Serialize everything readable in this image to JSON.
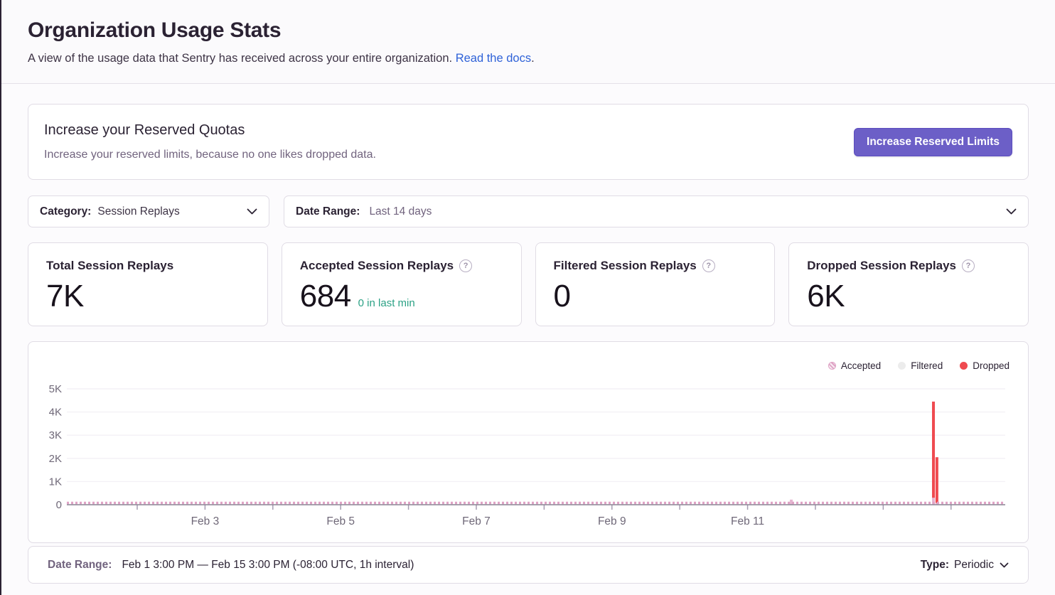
{
  "page": {
    "title": "Organization Usage Stats",
    "subtitle": "A view of the usage data that Sentry has received across your entire organization.",
    "docs_link": "Read the docs",
    "docs_link_suffix": "."
  },
  "quota_banner": {
    "title": "Increase your Reserved Quotas",
    "description": "Increase your reserved limits, because no one likes dropped data.",
    "button_label": "Increase Reserved Limits"
  },
  "filters": {
    "category": {
      "label": "Category:",
      "value": "Session Replays"
    },
    "date_range": {
      "label": "Date Range:",
      "value": "Last 14 days"
    }
  },
  "stat_cards": [
    {
      "title": "Total Session Replays",
      "value": "7K",
      "trend": ""
    },
    {
      "title": "Accepted Session Replays",
      "value": "684",
      "trend": "0 in last min"
    },
    {
      "title": "Filtered Session Replays",
      "value": "0",
      "trend": ""
    },
    {
      "title": "Dropped Session Replays",
      "value": "6K",
      "trend": ""
    }
  ],
  "chart_data": {
    "type": "bar",
    "title": "",
    "xlabel": "",
    "ylabel": "",
    "x_axis": {
      "range_start": "Feb 1 3:00 PM",
      "range_end": "Feb 15 3:00 PM",
      "interval": "1h",
      "tick_labels": [
        "Feb 3",
        "Feb 5",
        "Feb 7",
        "Feb 9",
        "Feb 11"
      ],
      "grid": false
    },
    "y_axis": {
      "min": 0,
      "max": 5000,
      "tick_values": [
        0,
        1000,
        2000,
        3000,
        4000,
        5000
      ],
      "tick_labels": [
        "0",
        "1K",
        "2K",
        "3K",
        "4K",
        "5K"
      ],
      "grid": true
    },
    "legend": [
      {
        "label": "Accepted",
        "color": "#dfa3c5",
        "pattern": "hatched"
      },
      {
        "label": "Filtered",
        "color": "#ececec",
        "pattern": "solid"
      },
      {
        "label": "Dropped",
        "color": "#ef4a50",
        "pattern": "solid"
      }
    ],
    "legend_position": "top-right",
    "series_summary": [
      {
        "name": "Accepted",
        "total": 684,
        "shape": "tiny hourly bars (~2/hour) along the entire baseline"
      },
      {
        "name": "Filtered",
        "total": 0,
        "shape": "no visible bars"
      },
      {
        "name": "Dropped",
        "total": 6000,
        "shape": "two adjacent spikes near Feb 14"
      }
    ],
    "bars": [
      {
        "x_fraction": 0.772,
        "series": "Accepted",
        "accepted_base": 220,
        "dropped": 0,
        "note": "small accepted blip ~Feb 12"
      },
      {
        "x_fraction": 0.9235,
        "series": "Dropped",
        "accepted_base": 300,
        "dropped": 4150,
        "note": "tall dropped spike ~Feb 14, total ~4.4K"
      },
      {
        "x_fraction": 0.9272,
        "series": "Dropped",
        "accepted_base": 80,
        "dropped": 1970,
        "note": "second dropped spike ~Feb 14, total ~2K"
      }
    ],
    "baseline_strip": {
      "series": "Accepted",
      "approx_value_per_hour": 2
    },
    "tick_geometry": {
      "first_fraction": 0.075,
      "step_fraction": 0.07227,
      "count": 13,
      "labeled_tick_indexes": [
        1,
        3,
        5,
        7,
        9
      ]
    }
  },
  "footer": {
    "date_range_label": "Date Range:",
    "date_range_value": "Feb 1 3:00 PM — Feb 15 3:00 PM (-08:00 UTC, 1h interval)",
    "type_label": "Type:",
    "type_value": "Periodic"
  },
  "colors": {
    "accent_purple": "#6c5fc7",
    "link_blue": "#2f62d8",
    "success_green": "#2ba185",
    "dropped_red": "#ef4a50",
    "accepted_pink": "#dfa3c5",
    "filtered_gray": "#ececec",
    "text_primary": "#2b2233",
    "text_secondary": "#71637e",
    "card_border": "#e0dce5",
    "axis_line": "#8a8494",
    "gridline": "#f3f1f6"
  }
}
